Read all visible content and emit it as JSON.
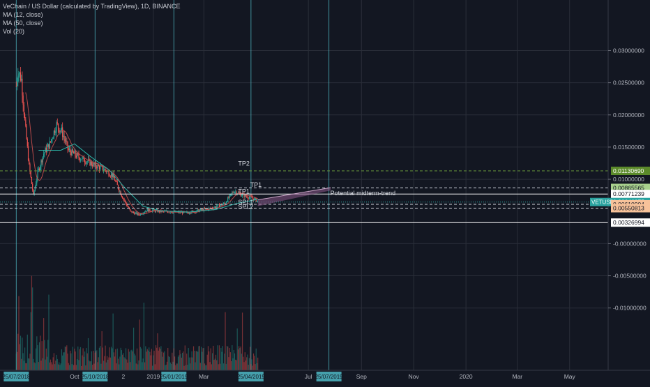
{
  "header": {
    "title": "VeChain / US Dollar (calculated by TradingView), 1D, BINANCE",
    "indicators": [
      "MA (12, close)",
      "MA (50, close)",
      "Vol (20)"
    ]
  },
  "colors": {
    "background": "#131722",
    "grid": "#2a2e39",
    "candle_up": "#26a69a",
    "candle_down": "#ef5350",
    "ma12": "#b84a4a",
    "ma50": "#2bb3a6",
    "vline": "#4fb8c4",
    "trend": "#8d5a8a",
    "green_label": "#5b8a2a",
    "orange_label": "#f7c29a",
    "price_label": "#2aa3a0"
  },
  "chart_data": {
    "type": "candlestick",
    "title": "VeChain / US Dollar (calculated by TradingView), 1D, BINANCE",
    "y_ticks": [
      "0.03000000",
      "0.02500000",
      "0.02000000",
      "0.01500000",
      "0.01000000",
      "-0.00000000",
      "-0.00500000",
      "-0.01000000"
    ],
    "y_tick_values": [
      0.03,
      0.025,
      0.02,
      0.015,
      0.01,
      0.0,
      -0.005,
      -0.01
    ],
    "ylim": [
      -0.0135,
      0.0333
    ],
    "x_ticks": [
      "Oct",
      "2019",
      "Mar",
      "Jul",
      "Sep",
      "Nov",
      "2020",
      "Mar",
      "May"
    ],
    "x_tick_dates": [
      "2018-10-01",
      "2019-01-01",
      "2019-03-01",
      "2019-07-01",
      "2019-09-01",
      "2019-11-01",
      "2020-01-01",
      "2020-03-01",
      "2020-05-01"
    ],
    "xlim": [
      "2018-07-06",
      "2020-06-15"
    ],
    "x_markers": [
      {
        "label": "25/07/2018",
        "date": "2018-07-25"
      },
      {
        "label": "25/10/2018",
        "date": "2018-10-25"
      },
      {
        "label": "25/01/2019",
        "date": "2019-01-25"
      },
      {
        "label": "25/04/2019",
        "date": "2019-04-25"
      },
      {
        "label": "25/07/2019",
        "date": "2019-07-25"
      }
    ],
    "partial_tick": "2",
    "price_path": [
      {
        "date": "2018-07-25",
        "value": 0.0245
      },
      {
        "date": "2018-07-27",
        "value": 0.027
      },
      {
        "date": "2018-07-31",
        "value": 0.0255
      },
      {
        "date": "2018-08-04",
        "value": 0.019
      },
      {
        "date": "2018-08-09",
        "value": 0.012
      },
      {
        "date": "2018-08-14",
        "value": 0.0075
      },
      {
        "date": "2018-08-19",
        "value": 0.011
      },
      {
        "date": "2018-08-26",
        "value": 0.014
      },
      {
        "date": "2018-09-02",
        "value": 0.0155
      },
      {
        "date": "2018-09-10",
        "value": 0.0185
      },
      {
        "date": "2018-09-16",
        "value": 0.0175
      },
      {
        "date": "2018-09-24",
        "value": 0.0145
      },
      {
        "date": "2018-10-05",
        "value": 0.0135
      },
      {
        "date": "2018-10-20",
        "value": 0.0125
      },
      {
        "date": "2018-11-05",
        "value": 0.0115
      },
      {
        "date": "2018-11-15",
        "value": 0.0105
      },
      {
        "date": "2018-11-25",
        "value": 0.0075
      },
      {
        "date": "2018-12-05",
        "value": 0.005
      },
      {
        "date": "2018-12-15",
        "value": 0.0045
      },
      {
        "date": "2018-12-25",
        "value": 0.0052
      },
      {
        "date": "2019-01-10",
        "value": 0.005
      },
      {
        "date": "2019-01-25",
        "value": 0.0049
      },
      {
        "date": "2019-02-10",
        "value": 0.0048
      },
      {
        "date": "2019-02-25",
        "value": 0.0052
      },
      {
        "date": "2019-03-10",
        "value": 0.0055
      },
      {
        "date": "2019-03-25",
        "value": 0.0062
      },
      {
        "date": "2019-04-05",
        "value": 0.0082
      },
      {
        "date": "2019-04-15",
        "value": 0.0075
      },
      {
        "date": "2019-04-25",
        "value": 0.0072
      },
      {
        "date": "2019-05-03",
        "value": 0.0066
      }
    ],
    "ma50_path": [
      {
        "date": "2018-08-20",
        "value": 0.0145
      },
      {
        "date": "2018-09-15",
        "value": 0.0145
      },
      {
        "date": "2018-10-01",
        "value": 0.0155
      },
      {
        "date": "2018-10-20",
        "value": 0.0135
      },
      {
        "date": "2018-11-10",
        "value": 0.0115
      },
      {
        "date": "2018-11-30",
        "value": 0.0085
      },
      {
        "date": "2018-12-20",
        "value": 0.0058
      },
      {
        "date": "2019-01-10",
        "value": 0.0051
      },
      {
        "date": "2019-02-10",
        "value": 0.0049
      },
      {
        "date": "2019-03-15",
        "value": 0.0053
      },
      {
        "date": "2019-04-10",
        "value": 0.0063
      },
      {
        "date": "2019-05-03",
        "value": 0.0069
      }
    ],
    "horizontal_levels": [
      {
        "value": 0.0113069,
        "label": "0.01130690",
        "style": "dashed-green",
        "tag": "TP2"
      },
      {
        "value": 0.00865565,
        "label": "0.00865565",
        "style": "dashed-white",
        "tag": "TP1"
      },
      {
        "value": 0.00771239,
        "label": "0.00771239",
        "style": "solid-white",
        "tag": ""
      },
      {
        "value": 0.00646275,
        "label": "0.00646275",
        "style": "current-price",
        "tag": "VETUSD"
      },
      {
        "value": 0.00610904,
        "label": "0.00610904",
        "style": "dashed-orange",
        "tag": "SPL1"
      },
      {
        "value": 0.00550813,
        "label": "0.00550813",
        "style": "dashed-orange",
        "tag": "SPL2"
      },
      {
        "value": 0.00326994,
        "label": "0.00326994",
        "style": "solid-white",
        "tag": ""
      }
    ],
    "annotations": [
      {
        "text": "TP2",
        "date": "2019-04-10",
        "value": 0.0121
      },
      {
        "text": "TP1",
        "date": "2019-04-10",
        "value": 0.0078
      },
      {
        "text": "TP1",
        "date": "2019-04-24",
        "value": 0.0088
      },
      {
        "text": "SPL1",
        "date": "2019-04-10",
        "value": 0.0061
      },
      {
        "text": "SPL2",
        "date": "2019-04-10",
        "value": 0.0054
      },
      {
        "text": "Potential midterm-trend",
        "date": "2019-07-25",
        "value": 0.0075
      }
    ],
    "trend_channel": [
      {
        "date": "2019-05-03",
        "value": 0.0068
      },
      {
        "date": "2019-07-27",
        "value": 0.0087
      }
    ],
    "volume_bars": 300
  }
}
